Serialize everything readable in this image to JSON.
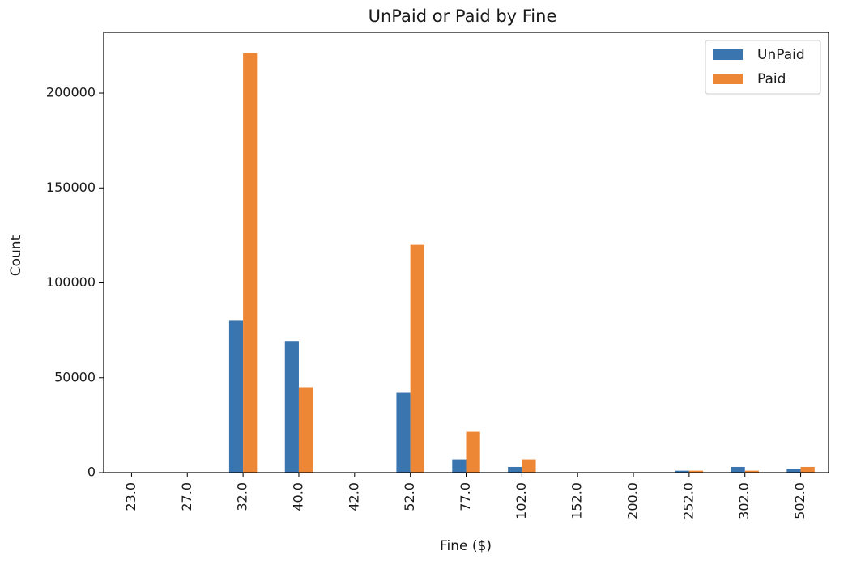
{
  "chart_data": {
    "type": "bar",
    "title": "UnPaid or Paid by Fine",
    "xlabel": "Fine ($)",
    "ylabel": "Count",
    "categories": [
      "23.0",
      "27.0",
      "32.0",
      "40.0",
      "42.0",
      "52.0",
      "77.0",
      "102.0",
      "152.0",
      "200.0",
      "252.0",
      "302.0",
      "502.0"
    ],
    "series": [
      {
        "name": "UnPaid",
        "color": "#3a75af",
        "values": [
          0,
          0,
          80000,
          69000,
          0,
          42000,
          7000,
          3000,
          0,
          0,
          1000,
          3000,
          2000
        ]
      },
      {
        "name": "Paid",
        "color": "#ee8735",
        "values": [
          0,
          0,
          221000,
          45000,
          0,
          120000,
          21500,
          7000,
          0,
          0,
          1000,
          1000,
          3000
        ]
      }
    ],
    "ylim": [
      0,
      232000
    ],
    "yticks": [
      0,
      50000,
      100000,
      150000,
      200000
    ],
    "ytick_labels": [
      "0",
      "50000",
      "100000",
      "150000",
      "200000"
    ],
    "grid": false,
    "legend_position": "top-right"
  }
}
